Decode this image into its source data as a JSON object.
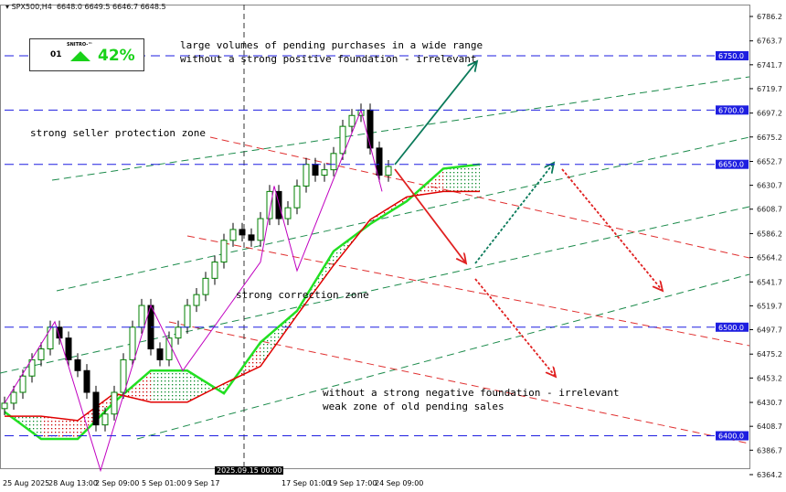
{
  "header": {
    "symbol": "SPX500,H4",
    "ohlc": "6648.0 6649.5 6646.7 6648.5"
  },
  "badge": {
    "brand": "SNITRO-™",
    "icon": "01",
    "direction": "up-triangle-icon",
    "percent": "42%",
    "color": "#19d219"
  },
  "annotations": {
    "top_line1": "large volumes of pending purchases in a wide range",
    "top_line2": "without a strong positive foundation - irrelevant",
    "seller_zone": "strong seller protection zone",
    "correction_zone": "strong correction zone",
    "bottom_line1": "without a strong negative foundation - irrelevant",
    "bottom_line2": "weak zone of old pending sales"
  },
  "x_axis": {
    "labels": [
      "25 Aug 2025",
      "28 Aug 13:00",
      "2 Sep 09:00",
      "5 Sep 01:00",
      "9 Sep 17",
      "17 Sep 01:00",
      "19 Sep 17:00",
      "24 Sep 09:00"
    ],
    "crosshair_label": "2025.09.15 00:00"
  },
  "chart_data": {
    "type": "candlestick",
    "title": "SPX500,H4",
    "y_ticks": [
      6786.2,
      6763.7,
      6741.7,
      6719.7,
      6697.2,
      6675.2,
      6652.7,
      6630.7,
      6608.7,
      6586.2,
      6564.2,
      6541.7,
      6519.7,
      6497.7,
      6475.2,
      6453.2,
      6430.7,
      6408.7,
      6386.7,
      6364.2
    ],
    "ylim": [
      6364.2,
      6786.2
    ],
    "levels": [
      6750.0,
      6700.0,
      6650.0,
      6500.0,
      6400.0
    ],
    "closes": [
      6430,
      6440,
      6455,
      6470,
      6480,
      6500,
      6490,
      6470,
      6460,
      6440,
      6410,
      6420,
      6440,
      6470,
      6500,
      6520,
      6480,
      6470,
      6490,
      6500,
      6520,
      6530,
      6545,
      6560,
      6580,
      6590,
      6585,
      6580,
      6600,
      6625,
      6600,
      6610,
      6630,
      6650,
      6640,
      6645,
      6660,
      6685,
      6695,
      6700,
      6665,
      6640,
      6648
    ],
    "cloud_span_a": [
      6422,
      6397,
      6397,
      6431,
      6460,
      6460,
      6439,
      6486,
      6515,
      6570,
      6595,
      6616,
      6646,
      6650
    ],
    "cloud_span_b": [
      6418,
      6418,
      6414,
      6439,
      6431,
      6431,
      6448,
      6464,
      6511,
      6557,
      6599,
      6620,
      6625,
      6625
    ],
    "zigzag": [
      [
        0,
        6430
      ],
      [
        5.5,
        6505
      ],
      [
        10.5,
        6368
      ],
      [
        16,
        6520
      ],
      [
        19.5,
        6460
      ],
      [
        28,
        6560
      ],
      [
        29.5,
        6630
      ],
      [
        32,
        6552
      ],
      [
        39,
        6700
      ],
      [
        41.3,
        6625
      ]
    ],
    "colors": {
      "bull": "#008000",
      "bear": "#000000",
      "cloud_a": "#22e022",
      "cloud_b": "#e00000",
      "levels": "#1e1ee0",
      "zigzag": "#c000c0"
    }
  }
}
